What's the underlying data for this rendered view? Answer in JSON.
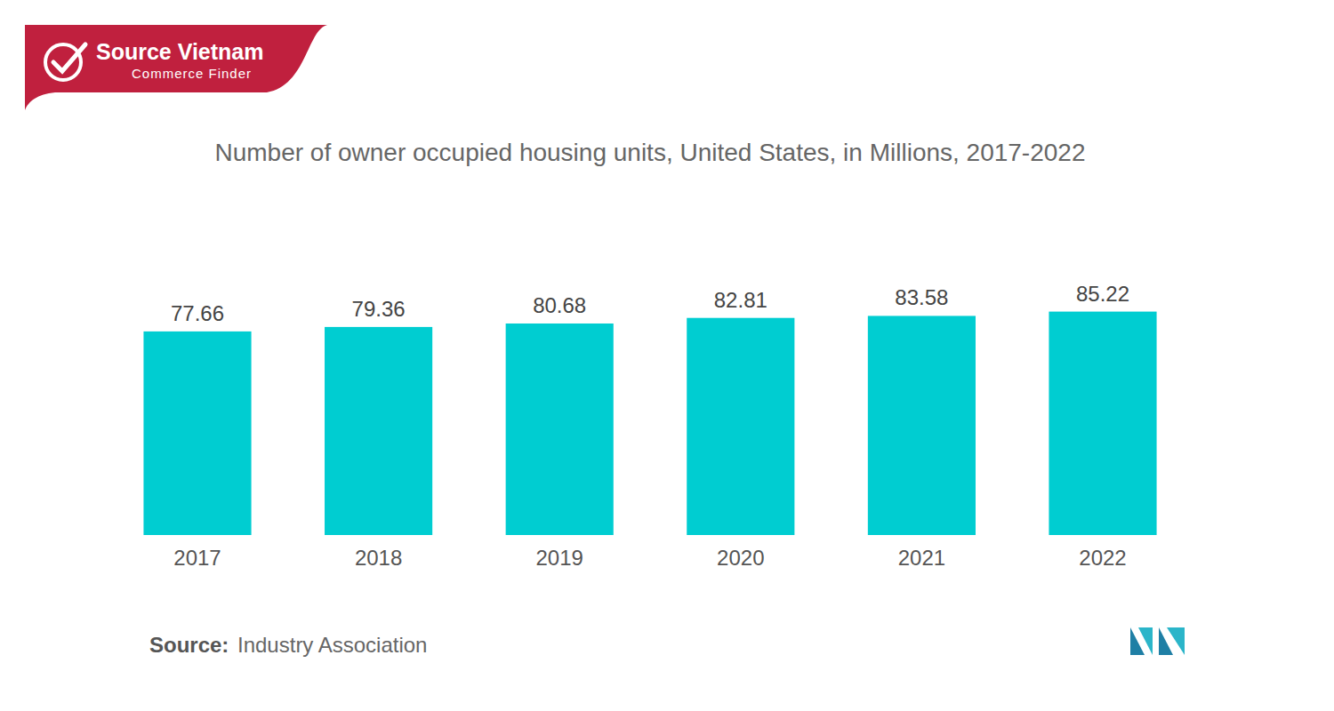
{
  "chart_data": {
    "type": "bar",
    "title": "Number of owner occupied housing units, United States, in Millions, 2017-2022",
    "categories": [
      "2017",
      "2018",
      "2019",
      "2020",
      "2021",
      "2022"
    ],
    "values": [
      77.66,
      79.36,
      80.68,
      82.81,
      83.58,
      85.22
    ],
    "color": "#00cdd1",
    "ylim": [
      0,
      100
    ],
    "data_labels": true,
    "tick_labels": "x",
    "grid": false
  },
  "logo": {
    "title": "Source Vietnam",
    "subtitle": "Commerce Finder"
  },
  "footer": {
    "label": "Source:",
    "text": "Industry Association"
  }
}
